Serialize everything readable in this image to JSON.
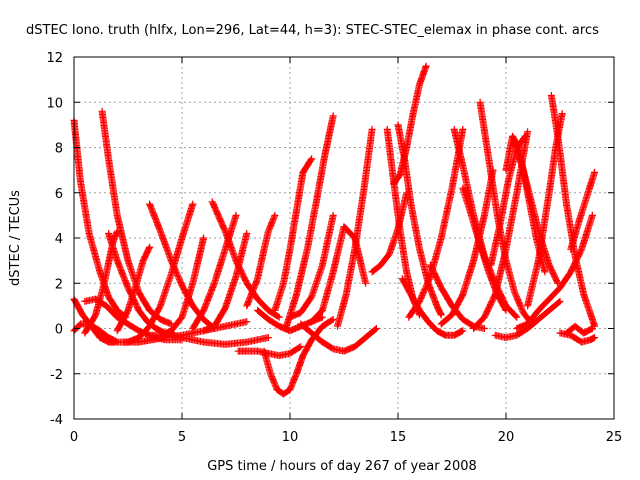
{
  "chart_data": {
    "type": "scatter",
    "title": "dSTEC Iono. truth (hlfx, Lon=296, Lat=44, h=3): STEC-STEC_elemax in phase cont. arcs",
    "xlabel": "GPS time / hours of day 267 of year 2008",
    "ylabel": "dSTEC  / TECUs",
    "xlim": [
      0,
      25
    ],
    "ylim": [
      -4,
      12
    ],
    "xticks": [
      0,
      5,
      10,
      15,
      20,
      25
    ],
    "yticks": [
      -4,
      -2,
      0,
      2,
      4,
      6,
      8,
      10,
      12
    ],
    "xtick_labels": [
      "0",
      "5",
      "10",
      "15",
      "20",
      "25"
    ],
    "ytick_labels": [
      "-4",
      "-2",
      "0",
      "2",
      "4",
      "6",
      "8",
      "10",
      "12"
    ],
    "grid": true,
    "legend": "none",
    "marker": "+",
    "series_color": "#ff0000",
    "arcs": [
      {
        "x": [
          0.0,
          0.3,
          0.7,
          1.2,
          1.6,
          2.0,
          2.4
        ],
        "y": [
          9.2,
          6.5,
          4.2,
          2.5,
          1.4,
          0.8,
          0.5
        ]
      },
      {
        "x": [
          0.0,
          0.4,
          0.8,
          1.2,
          1.6,
          1.9
        ],
        "y": [
          1.3,
          0.6,
          0.1,
          -0.4,
          -0.6,
          -0.6
        ]
      },
      {
        "x": [
          0.0,
          0.3,
          0.7,
          1.2,
          1.6,
          2.0,
          2.5,
          3.0
        ],
        "y": [
          -0.1,
          0.2,
          0.2,
          -0.1,
          -0.4,
          -0.6,
          -0.6,
          -0.4
        ]
      },
      {
        "x": [
          0.5,
          1.0,
          1.5,
          2.0,
          2.5,
          3.0,
          3.5,
          4.2,
          5.0
        ],
        "y": [
          1.2,
          1.3,
          1.0,
          0.5,
          0.2,
          -0.1,
          -0.3,
          -0.5,
          -0.5
        ]
      },
      {
        "x": [
          1.3,
          1.6,
          2.0,
          2.5,
          3.0,
          3.5,
          4.0,
          4.5
        ],
        "y": [
          9.6,
          7.5,
          5.0,
          3.0,
          1.6,
          0.8,
          0.4,
          0.2
        ]
      },
      {
        "x": [
          0.5,
          1.0,
          1.4,
          1.8,
          2.0
        ],
        "y": [
          -0.2,
          0.6,
          2.0,
          3.8,
          4.3
        ]
      },
      {
        "x": [
          1.6,
          2.0,
          2.5,
          3.0,
          3.4,
          3.8,
          4.2,
          4.6
        ],
        "y": [
          4.2,
          3.0,
          1.8,
          0.8,
          0.3,
          0.0,
          -0.2,
          -0.3
        ]
      },
      {
        "x": [
          2.0,
          2.5,
          2.9,
          3.2,
          3.5
        ],
        "y": [
          -0.1,
          0.8,
          2.0,
          3.0,
          3.6
        ]
      },
      {
        "x": [
          3.5,
          4.0,
          4.5,
          5.0,
          5.5,
          6.0,
          6.5
        ],
        "y": [
          5.5,
          4.3,
          3.0,
          1.9,
          1.0,
          0.4,
          0.0
        ]
      },
      {
        "x": [
          3.0,
          3.5,
          4.0,
          4.5,
          5.0,
          5.5
        ],
        "y": [
          -0.4,
          0.1,
          1.0,
          2.4,
          4.0,
          5.5
        ]
      },
      {
        "x": [
          3.5,
          4.0,
          4.5,
          5.0,
          5.5,
          6.0
        ],
        "y": [
          -0.3,
          -0.3,
          -0.1,
          0.5,
          2.0,
          4.0
        ]
      },
      {
        "x": [
          2.3,
          3.0,
          3.6,
          4.2,
          5.0,
          6.0,
          7.0,
          8.0
        ],
        "y": [
          -0.6,
          -0.6,
          -0.5,
          -0.4,
          -0.3,
          -0.1,
          0.1,
          0.3
        ]
      },
      {
        "x": [
          4.3,
          5.0,
          6.0,
          7.0,
          8.0,
          9.0
        ],
        "y": [
          -0.2,
          -0.4,
          -0.6,
          -0.7,
          -0.6,
          -0.4
        ]
      },
      {
        "x": [
          5.5,
          6.0,
          6.5,
          7.0,
          7.5
        ],
        "y": [
          0.0,
          0.8,
          2.0,
          3.5,
          5.0
        ]
      },
      {
        "x": [
          6.0,
          6.5,
          7.0,
          7.5,
          8.0
        ],
        "y": [
          -0.1,
          0.1,
          0.9,
          2.3,
          4.2
        ]
      },
      {
        "x": [
          6.4,
          7.0,
          7.5,
          8.0,
          8.5,
          9.0,
          9.5
        ],
        "y": [
          5.6,
          4.3,
          3.0,
          2.0,
          1.3,
          0.8,
          0.5
        ]
      },
      {
        "x": [
          7.6,
          8.0,
          8.5,
          9.0,
          9.5,
          10.0,
          10.5
        ],
        "y": [
          -1.0,
          -1.0,
          -1.0,
          -1.1,
          -1.2,
          -1.1,
          -0.8
        ]
      },
      {
        "x": [
          8.5,
          9.0,
          9.5,
          10.0,
          10.5,
          11.0,
          11.5
        ],
        "y": [
          0.8,
          0.4,
          0.1,
          -0.1,
          0.1,
          0.3,
          0.5
        ]
      },
      {
        "x": [
          8.0,
          8.5,
          8.8,
          9.0,
          9.3
        ],
        "y": [
          1.0,
          2.2,
          3.5,
          4.3,
          5.0
        ]
      },
      {
        "x": [
          8.8,
          9.1,
          9.4,
          9.7,
          10.0,
          10.3,
          10.6,
          11.0,
          11.5,
          12.0
        ],
        "y": [
          -1.0,
          -2.0,
          -2.7,
          -2.9,
          -2.7,
          -2.0,
          -1.2,
          -0.5,
          0.1,
          0.4
        ]
      },
      {
        "x": [
          9.3,
          9.7,
          10.0,
          10.3,
          10.6,
          11.0
        ],
        "y": [
          0.8,
          2.0,
          3.5,
          5.2,
          6.9,
          7.5
        ]
      },
      {
        "x": [
          9.8,
          10.3,
          10.8,
          11.2,
          11.6,
          12.0
        ],
        "y": [
          0.0,
          1.5,
          3.5,
          5.5,
          7.6,
          9.4
        ]
      },
      {
        "x": [
          10.0,
          10.5,
          11.0,
          11.5,
          12.0
        ],
        "y": [
          0.5,
          0.7,
          1.4,
          2.8,
          5.0
        ]
      },
      {
        "x": [
          11.0,
          11.5,
          12.0,
          12.5,
          13.0,
          13.5
        ],
        "y": [
          0.3,
          0.8,
          2.5,
          4.5,
          4.0,
          2.0
        ]
      },
      {
        "x": [
          10.5,
          11.0,
          11.5,
          12.0,
          12.5,
          13.0,
          13.5,
          14.0
        ],
        "y": [
          0.2,
          -0.2,
          -0.6,
          -0.9,
          -1.0,
          -0.8,
          -0.4,
          0.0
        ]
      },
      {
        "x": [
          12.2,
          12.6,
          13.0,
          13.4,
          13.8
        ],
        "y": [
          0.1,
          1.5,
          3.5,
          6.0,
          8.8
        ]
      },
      {
        "x": [
          13.8,
          14.2,
          14.6,
          15.0,
          15.4
        ],
        "y": [
          2.5,
          2.8,
          3.3,
          4.4,
          6.0
        ]
      },
      {
        "x": [
          14.5,
          14.8,
          15.1,
          15.4,
          15.7,
          16.0
        ],
        "y": [
          8.8,
          6.5,
          4.3,
          2.5,
          1.3,
          0.6
        ]
      },
      {
        "x": [
          14.8,
          15.1,
          15.4,
          15.7,
          16.0,
          16.3
        ],
        "y": [
          6.4,
          6.8,
          8.0,
          9.5,
          10.8,
          11.6
        ]
      },
      {
        "x": [
          15.0,
          15.3,
          15.6,
          16.0,
          16.4,
          16.8,
          17.0
        ],
        "y": [
          9.0,
          7.5,
          5.5,
          3.5,
          2.0,
          1.0,
          0.6
        ]
      },
      {
        "x": [
          15.5,
          16.0,
          16.5,
          17.0,
          17.5,
          18.0
        ],
        "y": [
          0.5,
          1.2,
          2.3,
          4.0,
          6.2,
          8.8
        ]
      },
      {
        "x": [
          15.2,
          15.6,
          16.0,
          16.4,
          16.8,
          17.2,
          17.6,
          18.0
        ],
        "y": [
          2.2,
          1.5,
          0.8,
          0.3,
          -0.1,
          -0.3,
          -0.3,
          -0.1
        ]
      },
      {
        "x": [
          16.5,
          17.0,
          17.5,
          18.0,
          18.5,
          19.0
        ],
        "y": [
          2.8,
          1.8,
          1.0,
          0.4,
          0.1,
          0.0
        ]
      },
      {
        "x": [
          17.0,
          17.5,
          18.0,
          18.5,
          19.0,
          19.4
        ],
        "y": [
          0.2,
          0.6,
          1.5,
          3.0,
          5.0,
          7.0
        ]
      },
      {
        "x": [
          17.6,
          18.0,
          18.5,
          19.0,
          19.5,
          20.0,
          20.5
        ],
        "y": [
          8.8,
          7.2,
          5.0,
          3.2,
          2.0,
          1.0,
          0.5
        ]
      },
      {
        "x": [
          18.0,
          18.4,
          18.8,
          19.2,
          19.6,
          20.0
        ],
        "y": [
          6.2,
          5.0,
          3.7,
          2.5,
          1.5,
          0.8
        ]
      },
      {
        "x": [
          18.5,
          19.0,
          19.5,
          20.0,
          20.5,
          21.0
        ],
        "y": [
          0.0,
          0.5,
          1.5,
          3.5,
          6.0,
          8.7
        ]
      },
      {
        "x": [
          18.8,
          19.2,
          19.6,
          20.0,
          20.4,
          20.8,
          21.2
        ],
        "y": [
          10.0,
          7.5,
          5.0,
          3.0,
          1.6,
          0.7,
          0.2
        ]
      },
      {
        "x": [
          19.3,
          19.7,
          20.1,
          20.5,
          20.9
        ],
        "y": [
          2.8,
          4.5,
          6.5,
          8.0,
          8.5
        ]
      },
      {
        "x": [
          20.0,
          20.3,
          20.6,
          21.0,
          21.4,
          21.8
        ],
        "y": [
          7.0,
          8.5,
          8.0,
          6.0,
          4.0,
          2.5
        ]
      },
      {
        "x": [
          20.4,
          20.8,
          21.2,
          21.6,
          22.0,
          22.4
        ],
        "y": [
          8.2,
          7.0,
          5.5,
          4.0,
          2.8,
          2.0
        ]
      },
      {
        "x": [
          19.5,
          20.0,
          20.5,
          21.0,
          21.5,
          22.0,
          22.5
        ],
        "y": [
          -0.3,
          -0.4,
          -0.3,
          0.0,
          0.4,
          0.8,
          1.2
        ]
      },
      {
        "x": [
          20.5,
          21.0,
          21.5,
          22.0,
          22.5,
          23.0,
          23.5,
          24.0
        ],
        "y": [
          0.0,
          0.2,
          0.8,
          1.3,
          1.8,
          2.5,
          3.5,
          5.0
        ]
      },
      {
        "x": [
          21.0,
          21.5,
          22.0,
          22.3,
          22.6
        ],
        "y": [
          1.0,
          3.0,
          6.0,
          8.0,
          9.5
        ]
      },
      {
        "x": [
          22.1,
          22.4,
          22.8,
          23.2,
          23.6,
          24.0,
          24.1
        ],
        "y": [
          10.3,
          8.5,
          5.5,
          3.2,
          1.5,
          0.4,
          0.1
        ]
      },
      {
        "x": [
          22.8,
          23.2,
          23.6,
          24.0
        ],
        "y": [
          -0.2,
          0.1,
          -0.2,
          0.0
        ]
      },
      {
        "x": [
          23.0,
          23.4,
          23.8,
          24.1
        ],
        "y": [
          3.5,
          4.8,
          6.0,
          6.9
        ]
      },
      {
        "x": [
          22.5,
          23.0,
          23.5,
          23.9,
          24.1
        ],
        "y": [
          -0.2,
          -0.3,
          -0.6,
          -0.5,
          -0.4
        ]
      }
    ]
  }
}
